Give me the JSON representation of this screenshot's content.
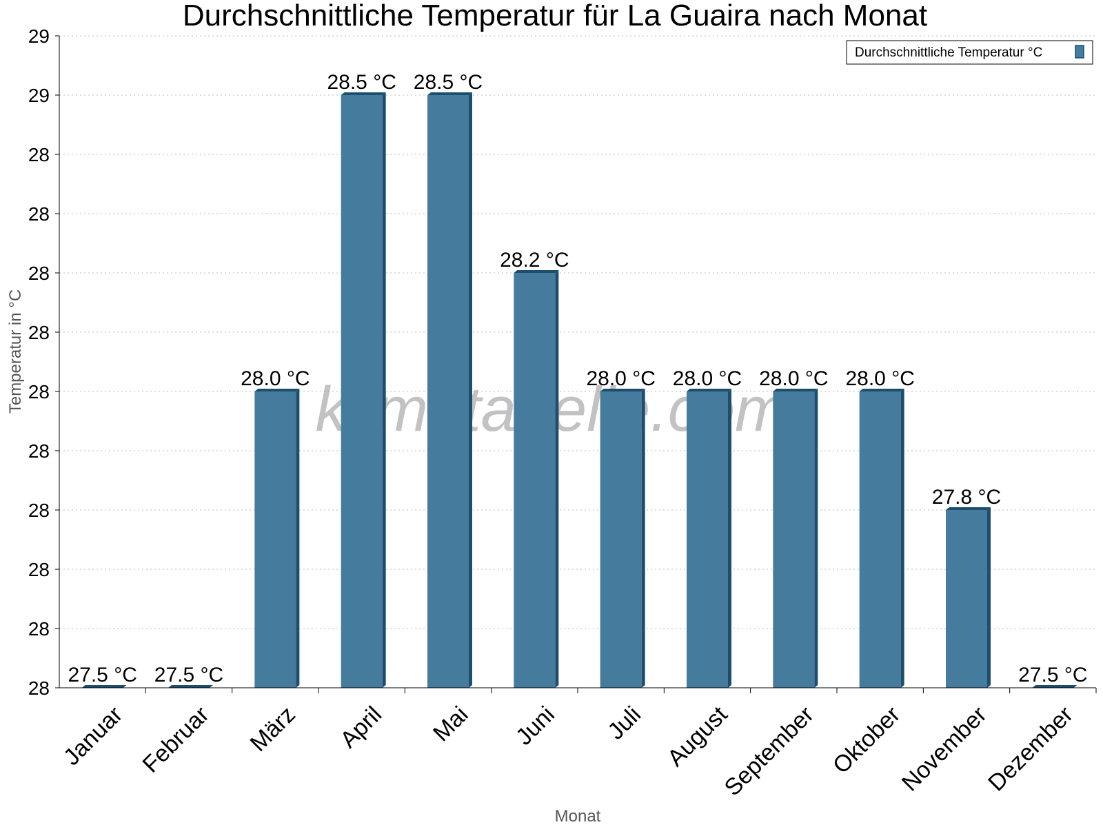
{
  "chart_data": {
    "type": "bar",
    "title": "Durchschnittliche Temperatur für La Guaira nach Monat",
    "xlabel": "Monat",
    "ylabel": "Temperatur in °C",
    "categories": [
      "Januar",
      "Februar",
      "März",
      "April",
      "Mai",
      "Juni",
      "Juli",
      "August",
      "September",
      "Oktober",
      "November",
      "Dezember"
    ],
    "series": [
      {
        "name": "Durchschnittliche Temperatur °C",
        "values": [
          27.5,
          27.5,
          28.0,
          28.5,
          28.5,
          28.2,
          28.0,
          28.0,
          28.0,
          28.0,
          27.8,
          27.5
        ],
        "data_labels": [
          "27.5 °C",
          "27.5 °C",
          "28.0 °C",
          "28.5 °C",
          "28.5 °C",
          "28.2 °C",
          "28.0 °C",
          "28.0 °C",
          "28.0 °C",
          "28.0 °C",
          "27.8 °C",
          "27.5 °C"
        ]
      }
    ],
    "ylim": [
      27.5,
      28.6
    ],
    "yticks": [
      27.5,
      27.6,
      27.7,
      27.8,
      27.9,
      28.0,
      28.1,
      28.2,
      28.3,
      28.4,
      28.5,
      28.6
    ],
    "ytick_labels": [
      "28",
      "28",
      "28",
      "28",
      "28",
      "28",
      "28",
      "28",
      "28",
      "28",
      "29",
      "29"
    ],
    "grid": true,
    "legend_position": "top-right",
    "watermark": "klimatabelle.com",
    "colors": {
      "bar": "#457b9d",
      "bar_shade": "#1d4e6e"
    }
  }
}
